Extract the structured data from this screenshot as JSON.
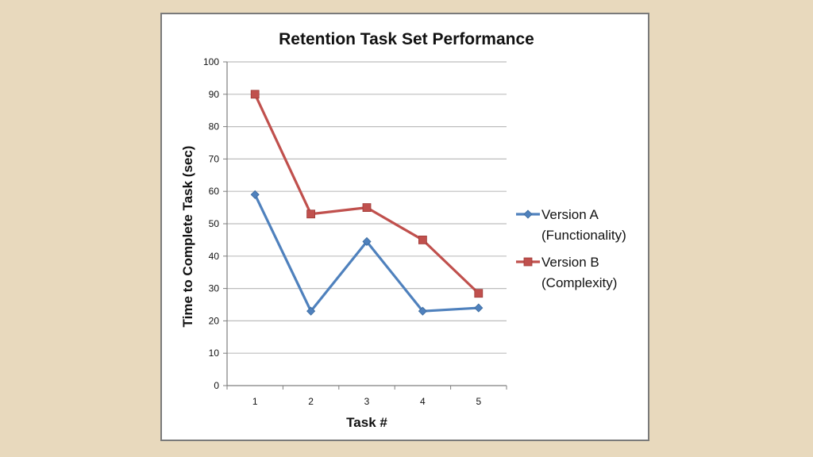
{
  "colors": {
    "background": "#e8d9bd",
    "series_a": "#4f81bd",
    "series_b": "#c0504d",
    "gridline": "#bdbdbd"
  },
  "chart_data": {
    "type": "line",
    "title": "Retention Task Set Performance",
    "xlabel": "Task #",
    "ylabel": "Time to Complete Task (sec)",
    "categories": [
      "1",
      "2",
      "3",
      "4",
      "5"
    ],
    "ylim": [
      0,
      100
    ],
    "yticks": [
      0,
      10,
      20,
      30,
      40,
      50,
      60,
      70,
      80,
      90,
      100
    ],
    "grid": true,
    "legend_position": "right",
    "series": [
      {
        "name_lines": [
          "Version A",
          "(Functionality)"
        ],
        "marker": "diamond",
        "color": "#4f81bd",
        "values": [
          59,
          23,
          44.5,
          23,
          24
        ]
      },
      {
        "name_lines": [
          "Version B",
          "(Complexity)"
        ],
        "marker": "square",
        "color": "#c0504d",
        "values": [
          90,
          53,
          55,
          45,
          28.5
        ]
      }
    ]
  }
}
